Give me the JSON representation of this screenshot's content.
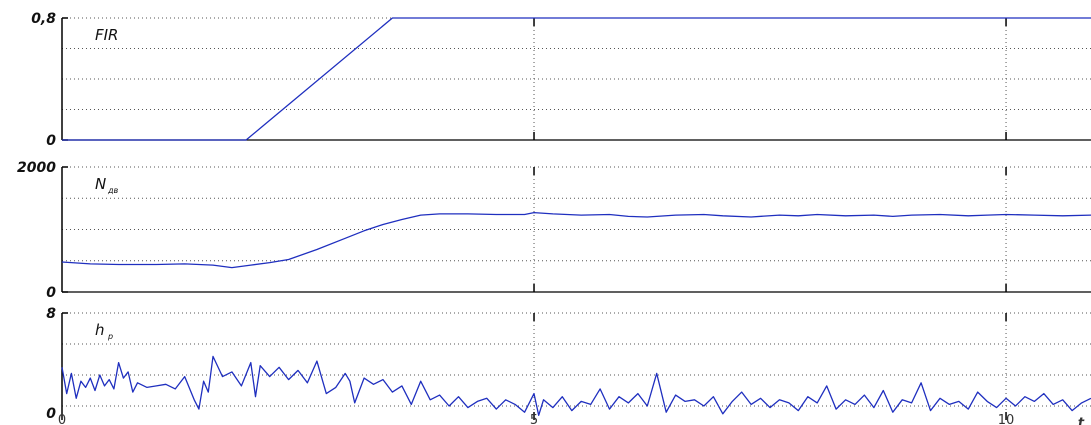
{
  "chart_data": {
    "type": "line",
    "x_ticks": [
      {
        "value": 0,
        "label": "0"
      },
      {
        "value": 5,
        "label": "5"
      },
      {
        "value": 10,
        "label": "10"
      }
    ],
    "x_range": [
      0,
      10.9
    ],
    "axis_end_label": "t",
    "line_color": "#1f2fbf",
    "grid": "dotted",
    "panels": [
      {
        "id": "fir",
        "label": "FIR",
        "subscript": "",
        "ylim": [
          0,
          0.8
        ],
        "y_tick_labels": [
          {
            "value": 0,
            "label": "0"
          },
          {
            "value": 0.8,
            "label": "0,8"
          }
        ],
        "y_grid": [
          0.2,
          0.4,
          0.6
        ],
        "series": [
          {
            "x": [
              0,
              1.95,
              3.5,
              10.9
            ],
            "y": [
              0,
              0,
              0.8,
              0.8
            ]
          }
        ]
      },
      {
        "id": "n",
        "label": "N",
        "subscript": "дв",
        "ylim": [
          0,
          2000
        ],
        "y_tick_labels": [
          {
            "value": 0,
            "label": "0"
          },
          {
            "value": 2000,
            "label": "2000"
          }
        ],
        "y_grid": [
          500,
          1000,
          1500
        ],
        "series": [
          {
            "x": [
              0,
              0.3,
              0.6,
              1.0,
              1.3,
              1.6,
              1.8,
              2.0,
              2.2,
              2.4,
              2.7,
              3.0,
              3.2,
              3.4,
              3.6,
              3.8,
              4.0,
              4.3,
              4.6,
              4.9,
              5.0,
              5.2,
              5.5,
              5.8,
              6.0,
              6.2,
              6.5,
              6.8,
              7.0,
              7.3,
              7.6,
              7.8,
              8.0,
              8.3,
              8.6,
              8.8,
              9.0,
              9.3,
              9.6,
              9.8,
              10.0,
              10.3,
              10.6,
              10.9
            ],
            "y": [
              480,
              450,
              440,
              440,
              450,
              430,
              390,
              430,
              470,
              520,
              680,
              860,
              980,
              1080,
              1160,
              1230,
              1250,
              1250,
              1240,
              1240,
              1270,
              1250,
              1230,
              1240,
              1210,
              1200,
              1230,
              1240,
              1220,
              1200,
              1230,
              1220,
              1240,
              1220,
              1230,
              1210,
              1230,
              1240,
              1220,
              1230,
              1240,
              1230,
              1220,
              1230
            ]
          }
        ]
      },
      {
        "id": "h",
        "label": "h",
        "subscript": "р",
        "ylim": [
          0,
          8
        ],
        "y_tick_labels": [
          {
            "value": 0,
            "label": "0"
          },
          {
            "value": 8,
            "label": "8"
          }
        ],
        "y_grid": [
          2,
          4,
          6
        ],
        "series": [
          {
            "x": [
              0,
              0.05,
              0.1,
              0.15,
              0.2,
              0.25,
              0.3,
              0.35,
              0.4,
              0.45,
              0.5,
              0.55,
              0.6,
              0.65,
              0.7,
              0.75,
              0.8,
              0.9,
              1.0,
              1.1,
              1.2,
              1.3,
              1.4,
              1.45,
              1.5,
              1.55,
              1.6,
              1.7,
              1.8,
              1.9,
              2.0,
              2.05,
              2.1,
              2.2,
              2.3,
              2.4,
              2.5,
              2.6,
              2.7,
              2.8,
              2.9,
              3.0,
              3.05,
              3.1,
              3.2,
              3.3,
              3.4,
              3.5,
              3.6,
              3.7,
              3.8,
              3.9,
              4.0,
              4.1,
              4.2,
              4.3,
              4.4,
              4.5,
              4.6,
              4.7,
              4.8,
              4.9,
              5.0,
              5.05,
              5.1,
              5.2,
              5.3,
              5.4,
              5.5,
              5.6,
              5.7,
              5.8,
              5.9,
              6.0,
              6.1,
              6.2,
              6.3,
              6.4,
              6.5,
              6.6,
              6.7,
              6.8,
              6.9,
              7.0,
              7.1,
              7.2,
              7.3,
              7.4,
              7.5,
              7.6,
              7.7,
              7.8,
              7.9,
              8.0,
              8.1,
              8.2,
              8.3,
              8.4,
              8.5,
              8.6,
              8.7,
              8.8,
              8.9,
              9.0,
              9.1,
              9.2,
              9.3,
              9.4,
              9.5,
              9.6,
              9.7,
              9.8,
              9.9,
              10.0,
              10.1,
              10.2,
              10.3,
              10.4,
              10.5,
              10.6,
              10.7,
              10.8,
              10.9
            ],
            "y": [
              4.5,
              2.8,
              4.1,
              2.5,
              3.6,
              3.2,
              3.8,
              3.0,
              4.0,
              3.3,
              3.7,
              3.1,
              4.8,
              3.8,
              4.2,
              2.9,
              3.5,
              3.2,
              3.3,
              3.4,
              3.1,
              3.9,
              2.4,
              1.8,
              3.6,
              2.9,
              5.2,
              3.9,
              4.2,
              3.3,
              4.8,
              2.6,
              4.6,
              3.9,
              4.5,
              3.7,
              4.3,
              3.5,
              4.9,
              2.8,
              3.2,
              4.1,
              3.6,
              2.2,
              3.8,
              3.4,
              3.7,
              2.9,
              3.3,
              2.1,
              3.6,
              2.4,
              2.7,
              2.0,
              2.6,
              1.9,
              2.3,
              2.5,
              1.8,
              2.4,
              2.1,
              1.6,
              2.8,
              1.4,
              2.4,
              1.9,
              2.6,
              1.7,
              2.3,
              2.1,
              3.1,
              1.8,
              2.6,
              2.2,
              2.8,
              2.0,
              4.1,
              1.6,
              2.7,
              2.3,
              2.4,
              2.0,
              2.6,
              1.5,
              2.3,
              2.9,
              2.1,
              2.5,
              1.9,
              2.4,
              2.2,
              1.7,
              2.6,
              2.2,
              3.3,
              1.8,
              2.4,
              2.1,
              2.7,
              1.9,
              3.0,
              1.6,
              2.4,
              2.2,
              3.5,
              1.7,
              2.5,
              2.1,
              2.3,
              1.8,
              2.9,
              2.3,
              1.9,
              2.5,
              2.0,
              2.6,
              2.3,
              2.8,
              2.1,
              2.4,
              1.7,
              2.2,
              2.5
            ]
          }
        ]
      }
    ]
  }
}
